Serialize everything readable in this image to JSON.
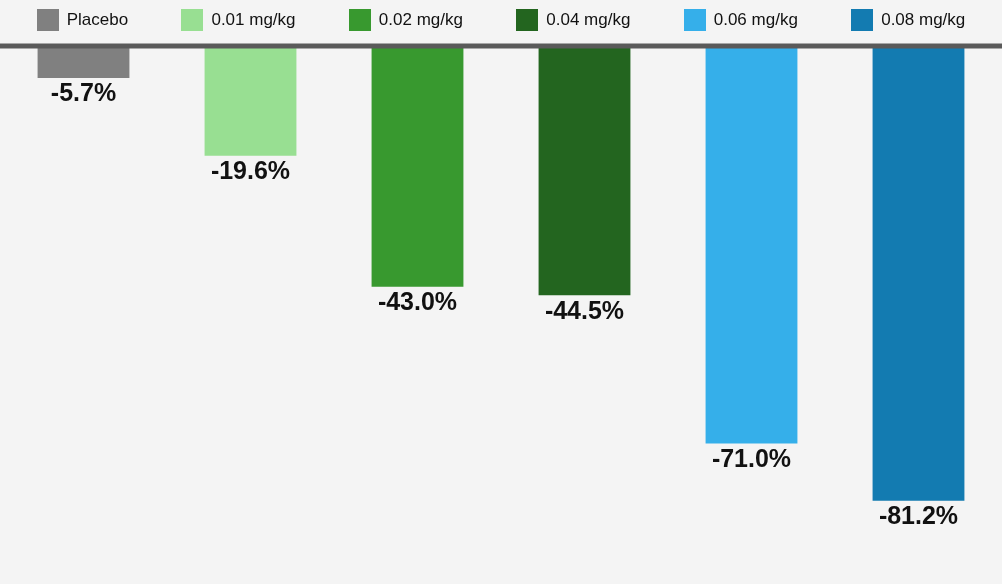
{
  "chart_data": {
    "type": "bar",
    "categories": [
      "Placebo",
      "0.01 mg/kg",
      "0.02 mg/kg",
      "0.04 mg/kg",
      "0.06 mg/kg",
      "0.08 mg/kg"
    ],
    "values": [
      -5.7,
      -19.6,
      -43.0,
      -44.5,
      -71.0,
      -81.2
    ],
    "value_labels": [
      "-5.7%",
      "-19.6%",
      "-43.0%",
      "-44.5%",
      "-71.0%",
      "-81.2%"
    ],
    "colors": [
      "#808080",
      "#98df92",
      "#38992f",
      "#23651f",
      "#35afea",
      "#137bb1"
    ],
    "grid": false,
    "tick_labels": false
  }
}
